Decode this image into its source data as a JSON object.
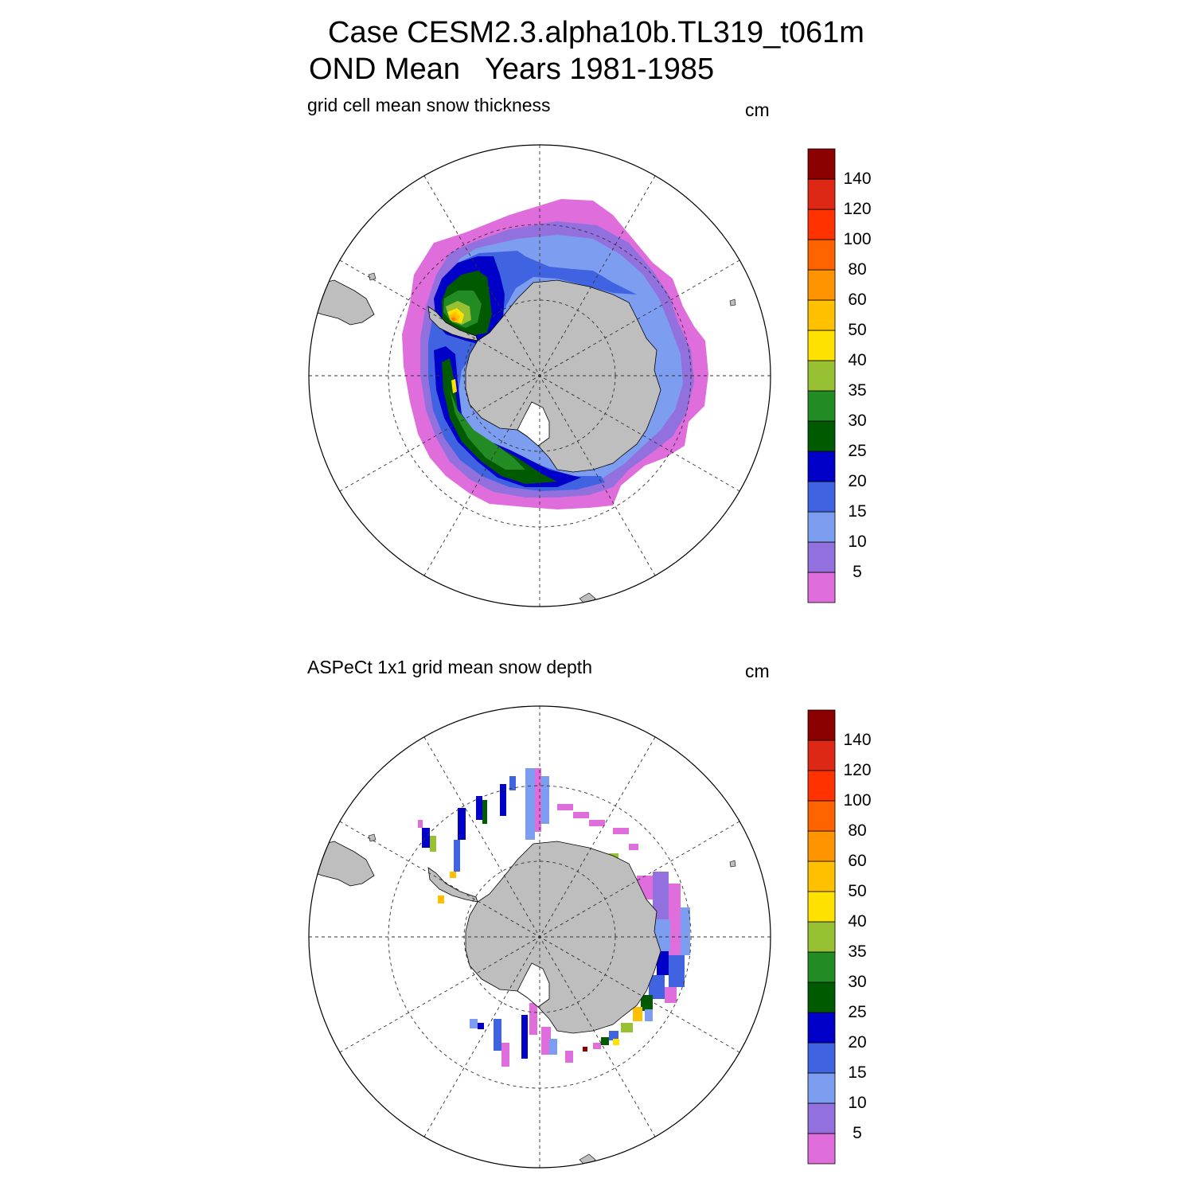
{
  "title": {
    "line1": "Case CESM2.3.alpha10b.TL319_t061m",
    "line2": "OND Mean   Years 1981-1985"
  },
  "panels": [
    {
      "label": "grid cell mean snow thickness",
      "unit": "cm"
    },
    {
      "label": "ASPeCt 1x1 grid mean snow depth",
      "unit": "cm"
    }
  ],
  "colorbar": {
    "levels": [
      "5",
      "10",
      "15",
      "20",
      "25",
      "30",
      "35",
      "40",
      "50",
      "60",
      "80",
      "100",
      "120",
      "140"
    ],
    "colors": [
      "#e06ddc",
      "#9270de",
      "#7d9ef0",
      "#3f63e1",
      "#0000c8",
      "#005a00",
      "#238b23",
      "#97c032",
      "#ffe100",
      "#ffc000",
      "#ff9300",
      "#ff6400",
      "#ff3200",
      "#dc2814",
      "#8b0000"
    ]
  },
  "map": {
    "land_color": "#bebebe",
    "ocean_color": "#ffffff",
    "grid": "dashed"
  }
}
